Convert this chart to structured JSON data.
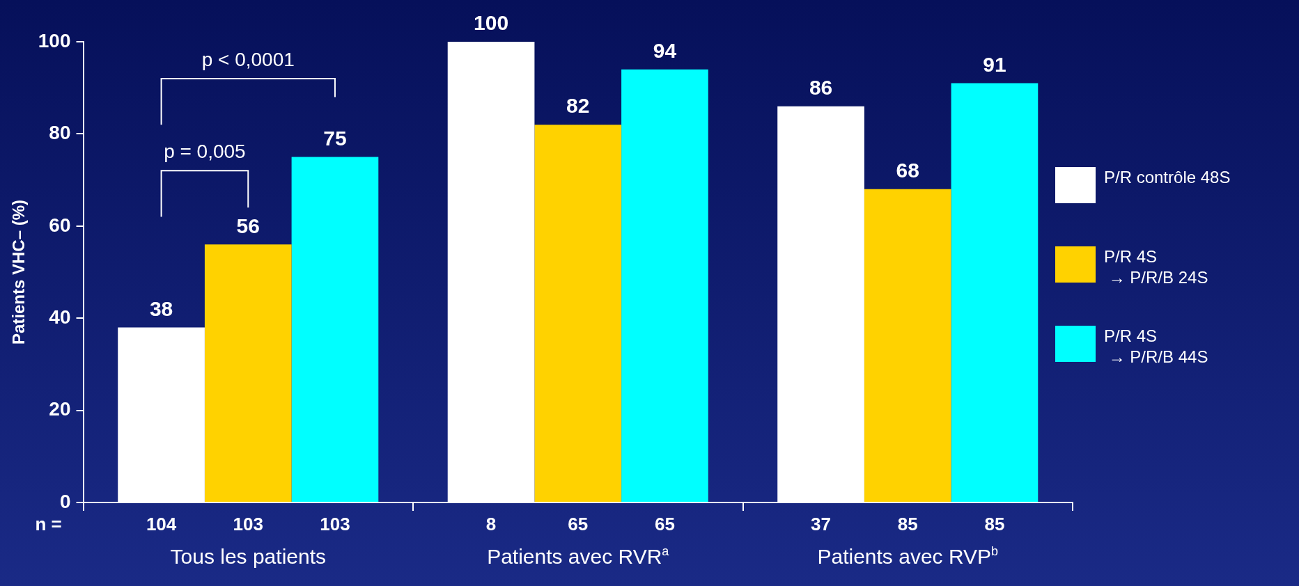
{
  "chart_data": {
    "type": "bar",
    "ylabel": "Patients VHC– (%)",
    "categories": [
      "Tous les patients",
      "Patients avec RVR$^{a}$",
      "Patients avec RVP$^{b}$"
    ],
    "series": [
      {
        "name": "P/R contrôle 48S",
        "color": "#ffffff",
        "values": [
          38,
          100,
          86
        ]
      },
      {
        "name": "P/R 4S → P/R/B 24S",
        "color": "#ffd200",
        "values": [
          56,
          82,
          68
        ]
      },
      {
        "name": "P/R 4S → P/R/B 44S",
        "color": "#00ffff",
        "values": [
          75,
          94,
          91
        ]
      }
    ],
    "ylim": [
      0,
      100
    ],
    "yticks": [
      0,
      20,
      40,
      60,
      80,
      100
    ],
    "data_labels": true,
    "legend": "right",
    "annotations": [
      "p = 0,005",
      "p < 0,0001",
      "n =",
      "104",
      "103",
      "103",
      "8",
      "65",
      "65",
      "37",
      "85",
      "85"
    ]
  }
}
